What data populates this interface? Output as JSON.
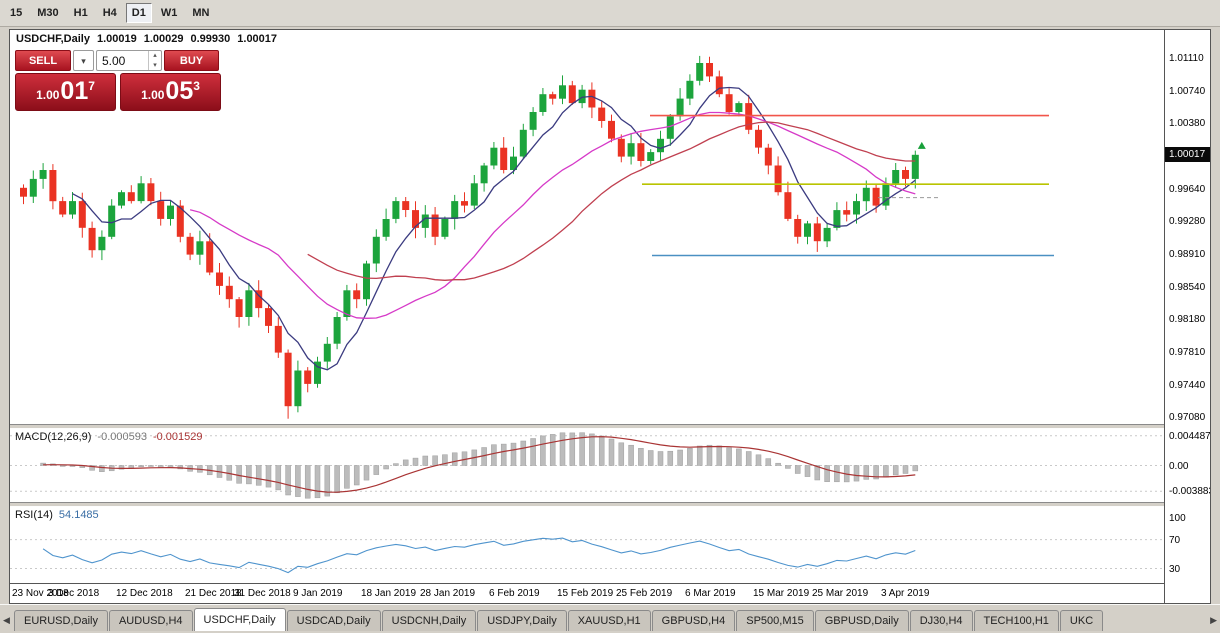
{
  "toolbar": {
    "timeframes": [
      "15",
      "M30",
      "H1",
      "H4",
      "D1",
      "W1",
      "MN"
    ],
    "active": "D1"
  },
  "chart_header": {
    "symbol": "USDCHF,Daily",
    "open": "1.00019",
    "high": "1.00029",
    "low": "0.99930",
    "close": "1.00017"
  },
  "trade_panel": {
    "sell_label": "SELL",
    "buy_label": "BUY",
    "volume": "5.00",
    "sell_price": {
      "prefix": "1.00",
      "big": "01",
      "sup": "7"
    },
    "buy_price": {
      "prefix": "1.00",
      "big": "05",
      "sup": "3"
    }
  },
  "price_axis": {
    "ticks": [
      "1.01110",
      "1.00740",
      "1.00380",
      "0.99640",
      "0.99280",
      "0.98910",
      "0.98540",
      "0.98180",
      "0.97810",
      "0.97440",
      "0.97080"
    ],
    "current": "1.00017"
  },
  "time_axis": [
    "23 Nov 2018",
    "3 Dec 2018",
    "12 Dec 2018",
    "21 Dec 2018",
    "31 Dec 2018",
    "9 Jan 2019",
    "18 Jan 2019",
    "28 Jan 2019",
    "6 Feb 2019",
    "15 Feb 2019",
    "25 Feb 2019",
    "6 Mar 2019",
    "15 Mar 2019",
    "25 Mar 2019",
    "3 Apr 2019"
  ],
  "macd_panel": {
    "name": "MACD(12,26,9)",
    "value1": "-0.000593",
    "value2": "-0.001529",
    "axis": [
      "0.004487",
      "0.00",
      "-0.003883"
    ]
  },
  "rsi_panel": {
    "name": "RSI(14)",
    "value": "54.1485",
    "axis": [
      "100",
      "70",
      "30"
    ]
  },
  "tabs": {
    "items": [
      "EURUSD,Daily",
      "AUDUSD,H4",
      "USDCHF,Daily",
      "USDCAD,Daily",
      "USDCNH,Daily",
      "USDJPY,Daily",
      "XAUUSD,H1",
      "GBPUSD,H4",
      "SP500,M15",
      "GBPUSD,Daily",
      "DJ30,H4",
      "TECH100,H1",
      "UKC"
    ],
    "active_index": 2
  },
  "chart_data": {
    "type": "candlestick",
    "symbol": "USDCHF",
    "timeframe": "Daily",
    "price_range": [
      0.97,
      1.0142
    ],
    "closes": [
      0.9955,
      0.9975,
      0.9985,
      0.995,
      0.9935,
      0.995,
      0.992,
      0.9895,
      0.991,
      0.9945,
      0.996,
      0.995,
      0.997,
      0.995,
      0.993,
      0.9945,
      0.991,
      0.989,
      0.9905,
      0.987,
      0.9855,
      0.984,
      0.982,
      0.985,
      0.983,
      0.981,
      0.978,
      0.972,
      0.976,
      0.9745,
      0.977,
      0.979,
      0.982,
      0.985,
      0.984,
      0.988,
      0.991,
      0.993,
      0.995,
      0.994,
      0.992,
      0.9935,
      0.991,
      0.993,
      0.995,
      0.9945,
      0.997,
      0.999,
      1.001,
      0.9985,
      1.0,
      1.003,
      1.005,
      1.007,
      1.0065,
      1.008,
      1.006,
      1.0075,
      1.0055,
      1.004,
      1.002,
      1.0,
      1.0015,
      0.9995,
      1.0005,
      1.002,
      1.0045,
      1.0065,
      1.0085,
      1.0105,
      1.009,
      1.007,
      1.005,
      1.006,
      1.003,
      1.001,
      0.999,
      0.996,
      0.993,
      0.991,
      0.9925,
      0.9905,
      0.992,
      0.994,
      0.9935,
      0.995,
      0.9965,
      0.9945,
      0.997,
      0.9985,
      0.9975,
      1.0002
    ],
    "wick_overrides": [
      {
        "index": 27,
        "low": 0.9706
      },
      {
        "index": 69,
        "high": 1.0113
      },
      {
        "index": 70,
        "high": 1.0112
      }
    ],
    "tick_indices": [
      0,
      6,
      13,
      20,
      25,
      31,
      38,
      44,
      51,
      58,
      64,
      71,
      78,
      84,
      91
    ],
    "hlines": [
      {
        "color": "#f1554a",
        "price": 1.0046,
        "from": 0.555,
        "to": 0.9,
        "width": 1.6
      },
      {
        "color": "#b9c400",
        "price": 0.9969,
        "from": 0.548,
        "to": 0.9,
        "width": 1.6
      },
      {
        "color": "#4a90c2",
        "price": 0.9889,
        "from": 0.556,
        "to": 0.905,
        "width": 1.6
      },
      {
        "color": "#9a9a9a",
        "price": 0.9954,
        "from": 0.752,
        "to": 0.805,
        "width": 1,
        "dash": "4 3"
      }
    ],
    "markers": [
      {
        "index": 91,
        "price": 1.0012,
        "type": "up-arrow",
        "color": "#18a03a"
      }
    ],
    "colors": {
      "candle_up": "#1ca43c",
      "candle_down": "#ea3323",
      "ma_fast": "#3b3b80",
      "ma_medium": "#d63ac8",
      "ma_slow": "#c04050",
      "macd_hist": "#bcbcbc",
      "macd_signal": "#a93434",
      "rsi_line": "#4f94cd",
      "level_dash": "#c9c9c9",
      "trade_red": "#c0182b"
    },
    "macd_range": [
      -0.0055,
      0.0055
    ],
    "rsi_display_range": [
      10,
      115
    ],
    "rsi_levels": [
      70,
      30
    ]
  }
}
